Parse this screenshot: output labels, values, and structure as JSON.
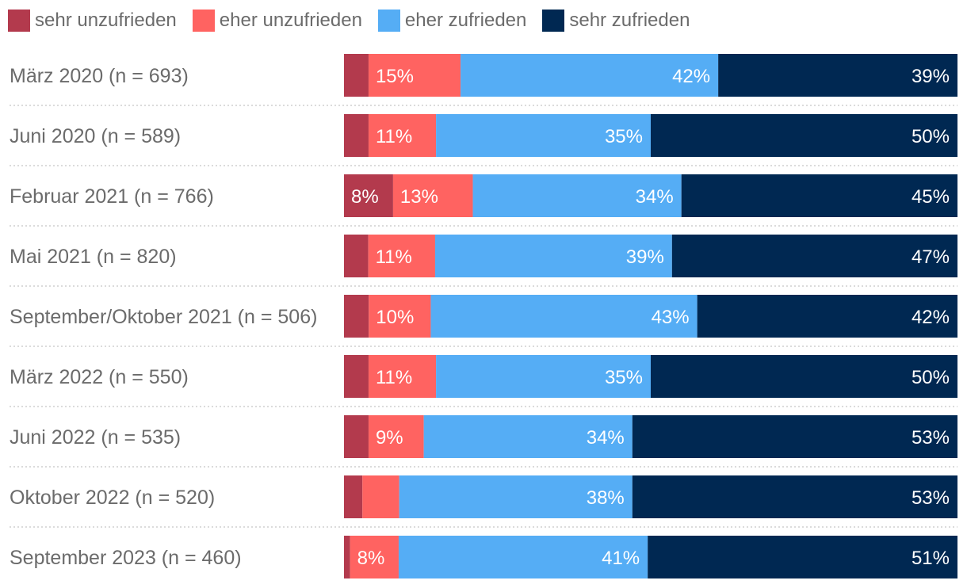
{
  "chart_data": {
    "type": "bar",
    "orientation": "horizontal",
    "stacked": true,
    "normalized": true,
    "categories": [
      "März 2020 (n = 693)",
      "Juni 2020 (n = 589)",
      "Februar 2021 (n = 766)",
      "Mai 2021 (n = 820)",
      "September/Oktober 2021 (n = 506)",
      "März 2022 (n = 550)",
      "Juni 2022 (n = 535)",
      "Oktober 2022 (n = 520)",
      "September 2023 (n = 460)"
    ],
    "series": [
      {
        "name": "sehr unzufrieden",
        "color": "#b33a4d",
        "values": [
          4,
          4,
          8,
          4,
          4,
          4,
          4,
          3,
          1
        ],
        "labels": [
          "",
          "",
          "8%",
          "",
          "",
          "",
          "",
          "",
          ""
        ]
      },
      {
        "name": "eher unzufrieden",
        "color": "#ff6361",
        "values": [
          15,
          11,
          13,
          11,
          10,
          11,
          9,
          6,
          8
        ],
        "labels": [
          "15%",
          "11%",
          "13%",
          "11%",
          "10%",
          "11%",
          "9%",
          "",
          "8%"
        ]
      },
      {
        "name": "eher zufrieden",
        "color": "#55adf5",
        "values": [
          42,
          35,
          34,
          39,
          43,
          35,
          34,
          38,
          41
        ],
        "labels": [
          "42%",
          "35%",
          "34%",
          "39%",
          "43%",
          "35%",
          "34%",
          "38%",
          "41%"
        ]
      },
      {
        "name": "sehr zufrieden",
        "color": "#002852",
        "values": [
          39,
          50,
          45,
          47,
          42,
          50,
          53,
          53,
          51
        ],
        "labels": [
          "39%",
          "50%",
          "45%",
          "47%",
          "42%",
          "50%",
          "53%",
          "53%",
          "51%"
        ]
      }
    ],
    "xlim": [
      0,
      100
    ],
    "legend_position": "top-left"
  }
}
